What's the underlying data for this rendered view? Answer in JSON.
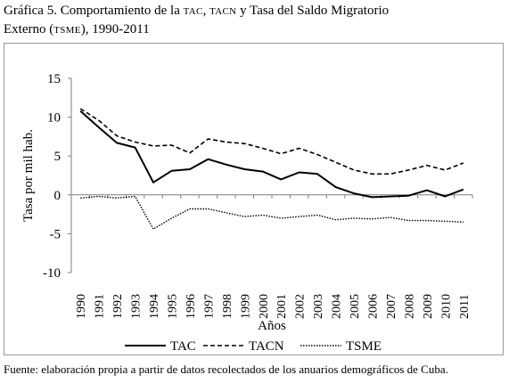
{
  "title": {
    "prefix": "Gráfica 5. Comportamiento de la ",
    "tac": "TAC",
    "sep": ",  ",
    "tacn": "TACN",
    "mid": " y Tasa del Saldo Migratorio",
    "line2_prefix": "Externo (",
    "tsme": "TSME",
    "line2_suffix": "), 1990-2011"
  },
  "source": "Fuente: elaboración propia a partir de datos recolectados de los anuarios demográficos de Cuba.",
  "chart_data": {
    "type": "line",
    "x": [
      "1990",
      "1991",
      "1992",
      "1993",
      "1994",
      "1995",
      "1996",
      "1997",
      "1998",
      "1999",
      "2000",
      "2001",
      "2002",
      "2003",
      "2004",
      "2005",
      "2006",
      "2007",
      "2008",
      "2009",
      "2010",
      "2011"
    ],
    "xlabel": "Años",
    "ylabel": "Tasa por mil hab.",
    "ylim": [
      -10,
      15
    ],
    "yticks": [
      -10,
      -5,
      0,
      5,
      10,
      15
    ],
    "grid": false,
    "legend_position": "bottom",
    "series": [
      {
        "name": "TAC",
        "style": "solid",
        "values": [
          10.8,
          8.7,
          6.7,
          6.1,
          1.6,
          3.1,
          3.3,
          4.6,
          3.9,
          3.3,
          3.0,
          2.0,
          2.9,
          2.7,
          1.0,
          0.2,
          -0.3,
          -0.2,
          -0.1,
          0.6,
          -0.2,
          0.7
        ]
      },
      {
        "name": "TACN",
        "style": "dashed",
        "values": [
          11.1,
          9.6,
          7.6,
          6.8,
          6.3,
          6.4,
          5.4,
          7.2,
          6.8,
          6.6,
          6.0,
          5.3,
          6.0,
          5.2,
          4.2,
          3.2,
          2.7,
          2.7,
          3.2,
          3.8,
          3.2,
          4.1
        ]
      },
      {
        "name": "TSME",
        "style": "dotted",
        "values": [
          -0.4,
          -0.2,
          -0.4,
          -0.2,
          -4.4,
          -3.0,
          -1.8,
          -1.8,
          -2.3,
          -2.8,
          -2.6,
          -3.0,
          -2.8,
          -2.6,
          -3.2,
          -3.0,
          -3.1,
          -2.9,
          -3.3,
          -3.3,
          -3.4,
          -3.5
        ]
      }
    ]
  }
}
